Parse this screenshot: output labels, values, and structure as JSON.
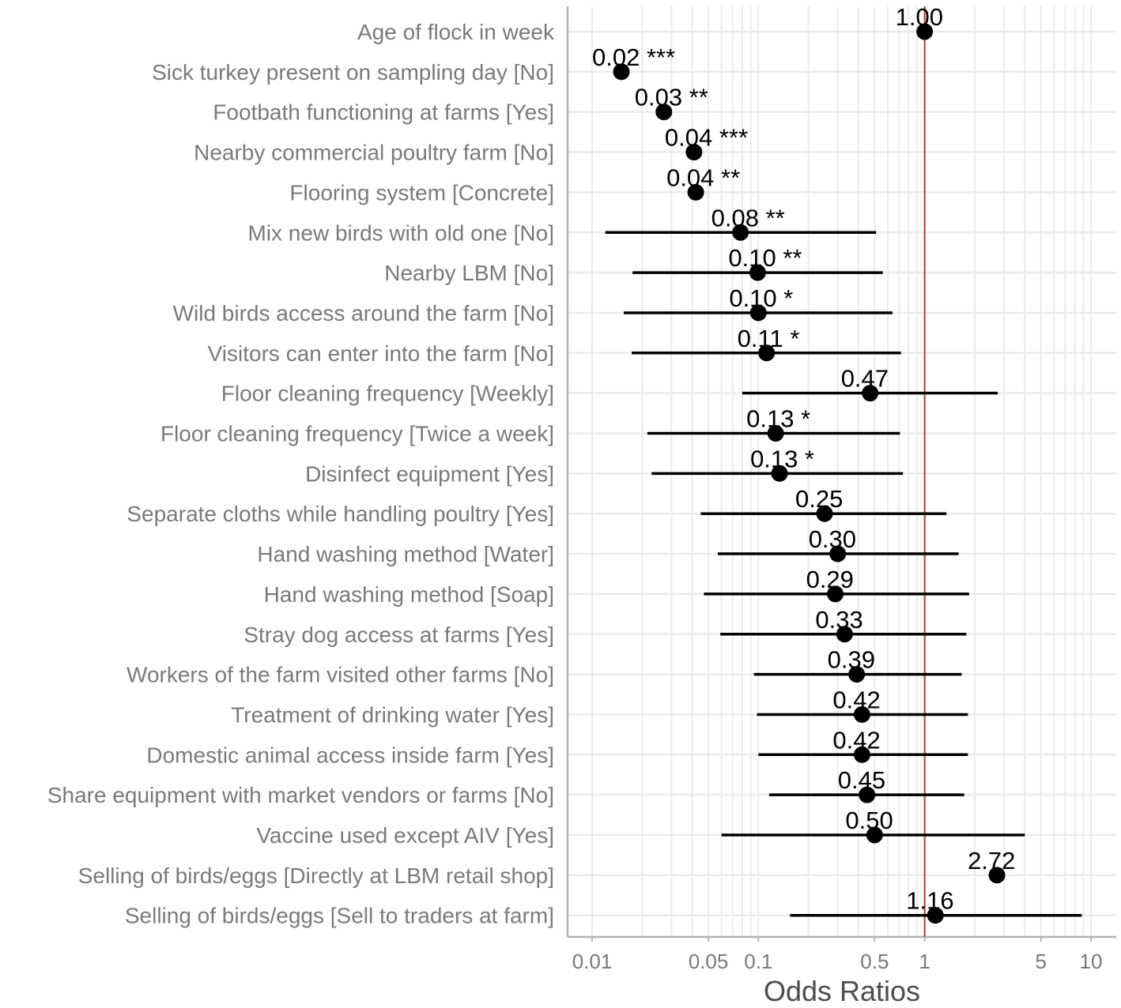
{
  "chart_data": {
    "type": "forest",
    "xlabel": "Odds Ratios",
    "xscale": "log",
    "xlim": [
      0.0075,
      13
    ],
    "x_ticks": [
      0.01,
      0.05,
      0.1,
      0.5,
      1,
      5,
      10
    ],
    "x_tick_labels": [
      "0.01",
      "0.05",
      "0.1",
      "0.5",
      "1",
      "5",
      "10"
    ],
    "reference_line": {
      "x": 1,
      "color": "#c0392b"
    },
    "grid": true,
    "rows": [
      {
        "label": "Age of flock in week",
        "or": 1.0,
        "ci": null,
        "text": "1.00"
      },
      {
        "label": "Sick turkey present on sampling day [No]",
        "or": 0.015,
        "ci": null,
        "text": "0.02 ***"
      },
      {
        "label": "Footbath functioning at farms [Yes]",
        "or": 0.027,
        "ci": null,
        "text": "0.03 **"
      },
      {
        "label": "Nearby commercial poultry farm [No]",
        "or": 0.041,
        "ci": null,
        "text": "0.04 ***"
      },
      {
        "label": "Flooring system [Concrete]",
        "or": 0.042,
        "ci": null,
        "text": "0.04 **"
      },
      {
        "label": "Mix new birds with old one [No]",
        "or": 0.078,
        "ci": [
          0.012,
          0.51
        ],
        "text": "0.08 **"
      },
      {
        "label": "Nearby LBM [No]",
        "or": 0.099,
        "ci": [
          0.0175,
          0.56
        ],
        "text": "0.10 **"
      },
      {
        "label": "Wild birds access around the farm [No]",
        "or": 0.1,
        "ci": [
          0.0155,
          0.64
        ],
        "text": "0.10 *"
      },
      {
        "label": "Visitors can enter into the farm [No]",
        "or": 0.112,
        "ci": [
          0.0173,
          0.72
        ],
        "text": "0.11 *"
      },
      {
        "label": "Floor cleaning frequency [Weekly]",
        "or": 0.47,
        "ci": [
          0.08,
          2.75
        ],
        "text": "0.47"
      },
      {
        "label": "Floor cleaning frequency [Twice a week]",
        "or": 0.127,
        "ci": [
          0.0215,
          0.71
        ],
        "text": "0.13 *"
      },
      {
        "label": "Disinfect equipment [Yes]",
        "or": 0.134,
        "ci": [
          0.0228,
          0.74
        ],
        "text": "0.13 *"
      },
      {
        "label": "Separate cloths while handling poultry [Yes]",
        "or": 0.25,
        "ci": [
          0.045,
          1.35
        ],
        "text": "0.25"
      },
      {
        "label": "Hand washing method [Water]",
        "or": 0.3,
        "ci": [
          0.057,
          1.6
        ],
        "text": "0.30"
      },
      {
        "label": "Hand washing method [Soap]",
        "or": 0.29,
        "ci": [
          0.047,
          1.85
        ],
        "text": "0.29"
      },
      {
        "label": "Stray dog access at farms [Yes]",
        "or": 0.33,
        "ci": [
          0.059,
          1.78
        ],
        "text": "0.33"
      },
      {
        "label": "Workers of the farm visited other farms [No]",
        "or": 0.39,
        "ci": [
          0.094,
          1.67
        ],
        "text": "0.39"
      },
      {
        "label": "Treatment of drinking water [Yes]",
        "or": 0.42,
        "ci": [
          0.098,
          1.82
        ],
        "text": "0.42"
      },
      {
        "label": "Domestic animal access inside farm [Yes]",
        "or": 0.42,
        "ci": [
          0.1,
          1.82
        ],
        "text": "0.42"
      },
      {
        "label": "Share equipment with market vendors or farms [No]",
        "or": 0.45,
        "ci": [
          0.116,
          1.73
        ],
        "text": "0.45"
      },
      {
        "label": "Vaccine used except AIV [Yes]",
        "or": 0.5,
        "ci": [
          0.06,
          4.0
        ],
        "text": "0.50"
      },
      {
        "label": "Selling of birds/eggs [Directly at LBM retail shop]",
        "or": 2.72,
        "ci": null,
        "text": "2.72"
      },
      {
        "label": "Selling of birds/eggs [Sell to traders at farm]",
        "or": 1.16,
        "ci": [
          0.155,
          8.8
        ],
        "text": "1.16"
      }
    ]
  }
}
